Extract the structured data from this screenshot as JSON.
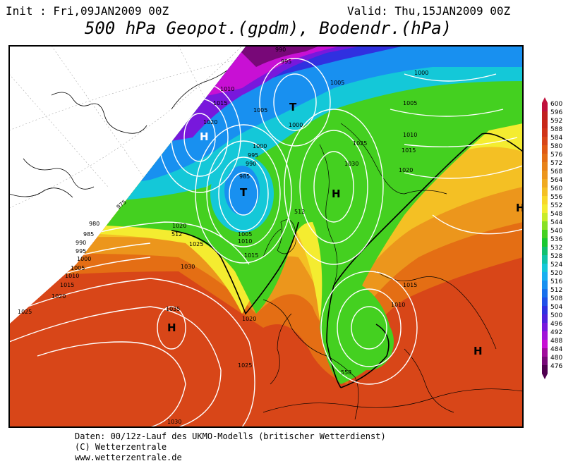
{
  "header": {
    "init": "Init : Fri,09JAN2009 00Z",
    "valid": "Valid: Thu,15JAN2009 00Z",
    "title": "500 hPa Geopot.(gpdm), Bodendr.(hPa)"
  },
  "legend": {
    "values": [
      "600",
      "596",
      "592",
      "588",
      "584",
      "580",
      "576",
      "572",
      "568",
      "564",
      "560",
      "556",
      "552",
      "548",
      "544",
      "540",
      "536",
      "532",
      "528",
      "524",
      "520",
      "516",
      "512",
      "508",
      "504",
      "500",
      "496",
      "492",
      "488",
      "484",
      "480",
      "476"
    ],
    "colors": [
      "#c0103c",
      "#c02020",
      "#c82818",
      "#d03418",
      "#d84618",
      "#e05a14",
      "#e46e14",
      "#e88218",
      "#ec961c",
      "#f0aa20",
      "#f4c024",
      "#f8d828",
      "#f4ec30",
      "#c8ec28",
      "#88e024",
      "#44d020",
      "#18c830",
      "#10c070",
      "#10c4a8",
      "#14c8d8",
      "#18b0f0",
      "#1890f0",
      "#1870ec",
      "#2050e8",
      "#3030e0",
      "#5020dc",
      "#7818dc",
      "#a014d8",
      "#c810d4",
      "#a00c9c",
      "#780878",
      "#500050"
    ]
  },
  "map_labels": {
    "highs_lows": [
      {
        "text": "H",
        "color": "#ffffff"
      },
      {
        "text": "T",
        "color": "#000000"
      },
      {
        "text": "T",
        "color": "#000000"
      },
      {
        "text": "H",
        "color": "#000000"
      },
      {
        "text": "H",
        "color": "#000000"
      },
      {
        "text": "H",
        "color": "#000000"
      },
      {
        "text": "H",
        "color": "#000000"
      }
    ],
    "isobars": [
      "990",
      "995",
      "1010",
      "1015",
      "1020",
      "1005",
      "1000",
      "1005",
      "1005",
      "1000",
      "1010",
      "1015",
      "1020",
      "1025",
      "1000",
      "995",
      "990",
      "985",
      "1030",
      "975",
      "980",
      "985",
      "990",
      "995",
      "1000",
      "1005",
      "1010",
      "1015",
      "1020",
      "1025",
      "1030",
      "1035",
      "1020",
      "1025",
      "1020",
      "1015",
      "1010",
      "1015",
      "1030",
      "1010",
      "1005",
      "1025"
    ],
    "geopot": [
      "512",
      "512",
      "558",
      "558"
    ]
  },
  "footer": {
    "line1": "Daten: 00/12z-Lauf des UKMO-Modells (britischer Wetterdienst)",
    "line2": "(C) Wetterzentrale",
    "line3": "www.wetterzentrale.de"
  }
}
